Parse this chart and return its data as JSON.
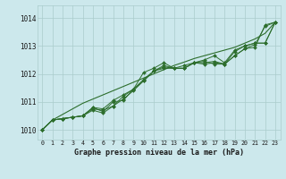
{
  "title": "Graphe pression niveau de la mer (hPa)",
  "ylabel_ticks": [
    1010,
    1011,
    1012,
    1013,
    1014
  ],
  "xlim": [
    -0.5,
    23.5
  ],
  "ylim": [
    1009.65,
    1014.45
  ],
  "background_color": "#cce8ec",
  "grid_color": "#aacccc",
  "line_color": "#2d6e2d",
  "markersize": 2.0,
  "series": [
    [
      1010.0,
      1010.35,
      1010.4,
      1010.45,
      1010.5,
      1010.75,
      1010.7,
      1010.85,
      1011.1,
      1011.4,
      1011.75,
      1012.1,
      1012.25,
      1012.2,
      1012.2,
      1012.4,
      1012.35,
      1012.4,
      1012.35,
      1012.65,
      1012.9,
      1013.05,
      1013.7,
      1013.85
    ],
    [
      1010.0,
      1010.35,
      1010.4,
      1010.45,
      1010.5,
      1010.8,
      1010.75,
      1011.05,
      1011.25,
      1011.45,
      1012.05,
      1012.2,
      1012.4,
      1012.2,
      1012.3,
      1012.4,
      1012.5,
      1012.65,
      1012.4,
      1012.85,
      1013.0,
      1013.1,
      1013.1,
      1013.85
    ],
    [
      1010.0,
      1010.35,
      1010.4,
      1010.45,
      1010.5,
      1010.7,
      1010.6,
      1010.85,
      1011.2,
      1011.45,
      1011.8,
      1012.1,
      1012.3,
      1012.2,
      1012.2,
      1012.4,
      1012.45,
      1012.35,
      1012.35,
      1012.65,
      1012.9,
      1012.95,
      1013.75,
      1013.85
    ],
    [
      1010.0,
      1010.35,
      1010.4,
      1010.45,
      1010.5,
      1010.8,
      1010.65,
      1011.0,
      1011.05,
      1011.45,
      1011.75,
      1012.1,
      1012.2,
      1012.2,
      1012.2,
      1012.4,
      1012.4,
      1012.45,
      1012.35,
      1012.8,
      1013.0,
      1013.1,
      1013.1,
      1013.85
    ]
  ],
  "smooth_line": [
    1010.0,
    1010.35,
    1010.55,
    1010.75,
    1010.95,
    1011.1,
    1011.25,
    1011.4,
    1011.55,
    1011.7,
    1011.85,
    1012.0,
    1012.15,
    1012.3,
    1012.42,
    1012.55,
    1012.65,
    1012.75,
    1012.85,
    1012.95,
    1013.1,
    1013.25,
    1013.45,
    1013.85
  ]
}
